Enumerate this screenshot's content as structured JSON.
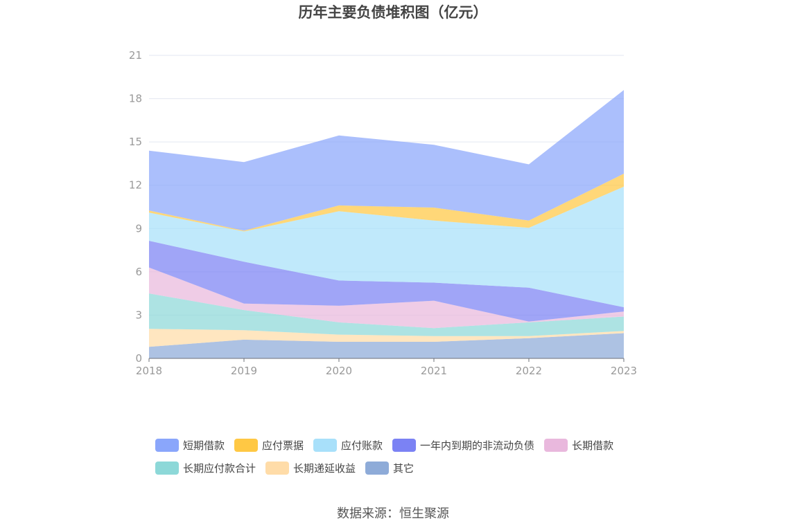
{
  "chart_data": {
    "type": "area",
    "title": "历年主要负债堆积图（亿元）",
    "x": [
      "2018",
      "2019",
      "2020",
      "2021",
      "2022",
      "2023"
    ],
    "ylim": [
      0,
      21
    ],
    "yticks": [
      "0",
      "3",
      "6",
      "9",
      "12",
      "15",
      "18",
      "21"
    ],
    "grid": true,
    "legend_position": "bottom",
    "series": [
      {
        "name": "其它",
        "color": "#8eabd8",
        "values": [
          0.8,
          1.3,
          1.15,
          1.15,
          1.4,
          1.75
        ]
      },
      {
        "name": "长期递延收益",
        "color": "#ffdca8",
        "values": [
          1.25,
          0.65,
          0.5,
          0.4,
          0.15,
          0.15
        ]
      },
      {
        "name": "长期应付款合计",
        "color": "#8dd8d8",
        "values": [
          2.45,
          1.4,
          0.85,
          0.55,
          0.95,
          1.0
        ]
      },
      {
        "name": "长期借款",
        "color": "#e9b8dd",
        "values": [
          1.8,
          0.45,
          1.15,
          1.9,
          0.05,
          0.35
        ]
      },
      {
        "name": "一年内到期的非流动负债",
        "color": "#7b82f4",
        "values": [
          1.85,
          2.9,
          1.75,
          1.25,
          2.35,
          0.3
        ]
      },
      {
        "name": "应付账款",
        "color": "#a8e0fa",
        "values": [
          1.95,
          2.1,
          4.8,
          4.3,
          4.15,
          8.35
        ]
      },
      {
        "name": "应付票据",
        "color": "#ffc844",
        "values": [
          0.15,
          0.05,
          0.4,
          0.9,
          0.5,
          0.9
        ]
      },
      {
        "name": "短期借款",
        "color": "#8aa6fb",
        "values": [
          4.15,
          4.75,
          4.85,
          4.35,
          3.9,
          5.8
        ]
      }
    ],
    "legend": [
      "短期借款",
      "应付票据",
      "应付账款",
      "一年内到期的非流动负债",
      "长期借款",
      "长期应付款合计",
      "长期递延收益",
      "其它"
    ]
  },
  "source": "数据来源：恒生聚源"
}
